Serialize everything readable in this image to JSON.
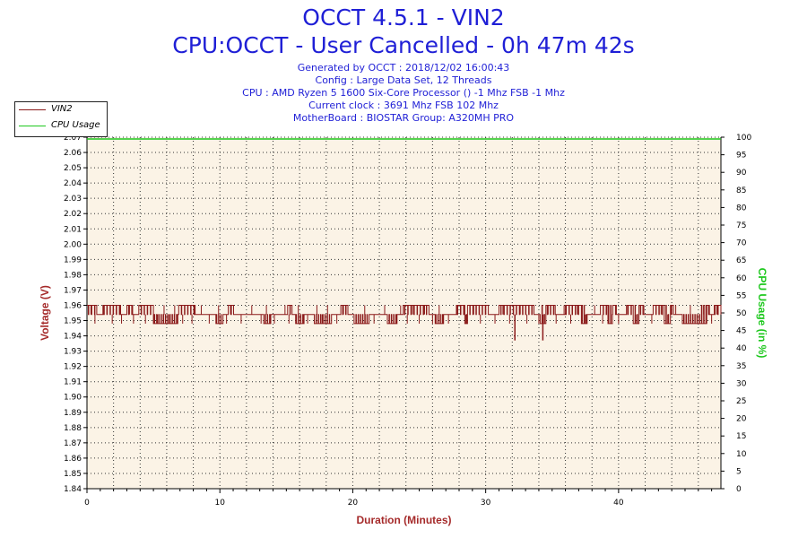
{
  "header": {
    "title_line1": "OCCT 4.5.1 - VIN2",
    "title_line2": "CPU:OCCT - User Cancelled - 0h 47m 42s",
    "info": [
      "Generated by OCCT : 2018/12/02 16:00:43",
      "Config : Large Data Set, 12 Threads",
      "CPU : AMD Ryzen 5 1600 Six-Core Processor () -1 Mhz FSB -1 Mhz",
      "Current clock : 3691 Mhz FSB 102 Mhz",
      "MotherBoard : BIOSTAR Group: A320MH PRO"
    ]
  },
  "legend": [
    {
      "label": "VIN2",
      "color": "#8b1a1a"
    },
    {
      "label": "CPU Usage",
      "color": "#1ec81e"
    }
  ],
  "chart_data": {
    "type": "line",
    "xlabel": "Duration (Minutes)",
    "ylabel_left": "Voltage (V)",
    "ylabel_right": "CPU Usage (in %)",
    "xlim": [
      0,
      47.7
    ],
    "ylim_left": [
      1.84,
      2.07
    ],
    "ylim_right": [
      0,
      100
    ],
    "x_ticks": [
      "0",
      "10",
      "20",
      "30",
      "40"
    ],
    "y_left_ticks": [
      "1.84",
      "1.85",
      "1.86",
      "1.87",
      "1.88",
      "1.89",
      "1.90",
      "1.91",
      "1.92",
      "1.93",
      "1.94",
      "1.95",
      "1.96",
      "1.97",
      "1.98",
      "1.99",
      "2.00",
      "2.01",
      "2.02",
      "2.03",
      "2.04",
      "2.05",
      "2.06",
      "2.07"
    ],
    "y_right_ticks": [
      "0",
      "5",
      "10",
      "15",
      "20",
      "25",
      "30",
      "35",
      "40",
      "45",
      "50",
      "55",
      "60",
      "65",
      "70",
      "75",
      "80",
      "85",
      "90",
      "95",
      "100"
    ],
    "grid": true,
    "colors": {
      "plot_bg": "#fbf3e6",
      "grid": "#333333",
      "vin2": "#8b1a1a",
      "cpu": "#1ec81e",
      "axis_left": "#a52a2a",
      "axis_right": "#1ec81e",
      "axis_x": "#a52a2a"
    },
    "series": [
      {
        "name": "VIN2",
        "axis": "left",
        "baseline": 1.954,
        "up": 1.96,
        "down": 1.948,
        "deep": 1.937,
        "up_spans": [
          [
            0,
            0.7
          ],
          [
            1.2,
            2.5
          ],
          [
            3.0,
            3.4
          ],
          [
            3.9,
            5.0
          ],
          [
            6.9,
            8.1
          ],
          [
            10.6,
            11.0
          ],
          [
            15.1,
            15.4
          ],
          [
            19.1,
            19.6
          ],
          [
            23.8,
            25.7
          ],
          [
            27.8,
            30.2
          ],
          [
            31.0,
            33.6
          ],
          [
            34.2,
            35.2
          ],
          [
            36.0,
            37.4
          ],
          [
            38.6,
            39.8
          ],
          [
            40.6,
            41.8
          ],
          [
            42.6,
            44.1
          ],
          [
            46.0,
            46.8
          ],
          [
            47.2,
            47.7
          ]
        ],
        "down_spans": [
          [
            5.0,
            6.8
          ],
          [
            9.7,
            10.2
          ],
          [
            13.3,
            13.8
          ],
          [
            15.7,
            16.3
          ],
          [
            17.1,
            18.4
          ],
          [
            20.1,
            21.2
          ],
          [
            22.6,
            23.3
          ],
          [
            26.2,
            26.8
          ],
          [
            28.4,
            28.6
          ],
          [
            34.1,
            34.5
          ],
          [
            37.2,
            37.6
          ],
          [
            39.2,
            39.5
          ],
          [
            41.1,
            41.5
          ],
          [
            43.4,
            43.9
          ],
          [
            44.8,
            46.6
          ]
        ],
        "deep_spikes": [
          32.2,
          34.3
        ],
        "spike_x": [
          0.3,
          0.6,
          1.5,
          1.9,
          2.2,
          2.6,
          3.2,
          3.5,
          4.1,
          4.4,
          4.8,
          5.3,
          5.8,
          6.2,
          6.6,
          7.2,
          7.6,
          7.9,
          8.6,
          9.2,
          9.9,
          10.5,
          10.8,
          11.6,
          12.4,
          13.1,
          13.5,
          14.1,
          14.9,
          15.2,
          15.9,
          16.6,
          17.3,
          17.7,
          18.1,
          18.8,
          19.3,
          20.4,
          20.9,
          21.6,
          22.4,
          22.9,
          23.6,
          24.1,
          24.5,
          25.0,
          25.4,
          26.0,
          26.5,
          27.2,
          27.9,
          28.5,
          29.1,
          29.6,
          30.0,
          30.7,
          31.3,
          31.8,
          32.6,
          33.1,
          33.5,
          34.0,
          34.7,
          35.3,
          35.9,
          36.4,
          36.9,
          37.5,
          38.2,
          38.8,
          39.4,
          40.0,
          40.6,
          41.3,
          41.9,
          42.5,
          43.2,
          43.7,
          44.3,
          44.9,
          45.4,
          45.9,
          46.4,
          47.0,
          47.4
        ]
      },
      {
        "name": "CPU Usage",
        "axis": "right",
        "x": [
          0,
          47.7
        ],
        "values": [
          99.5,
          99.5
        ]
      }
    ]
  }
}
